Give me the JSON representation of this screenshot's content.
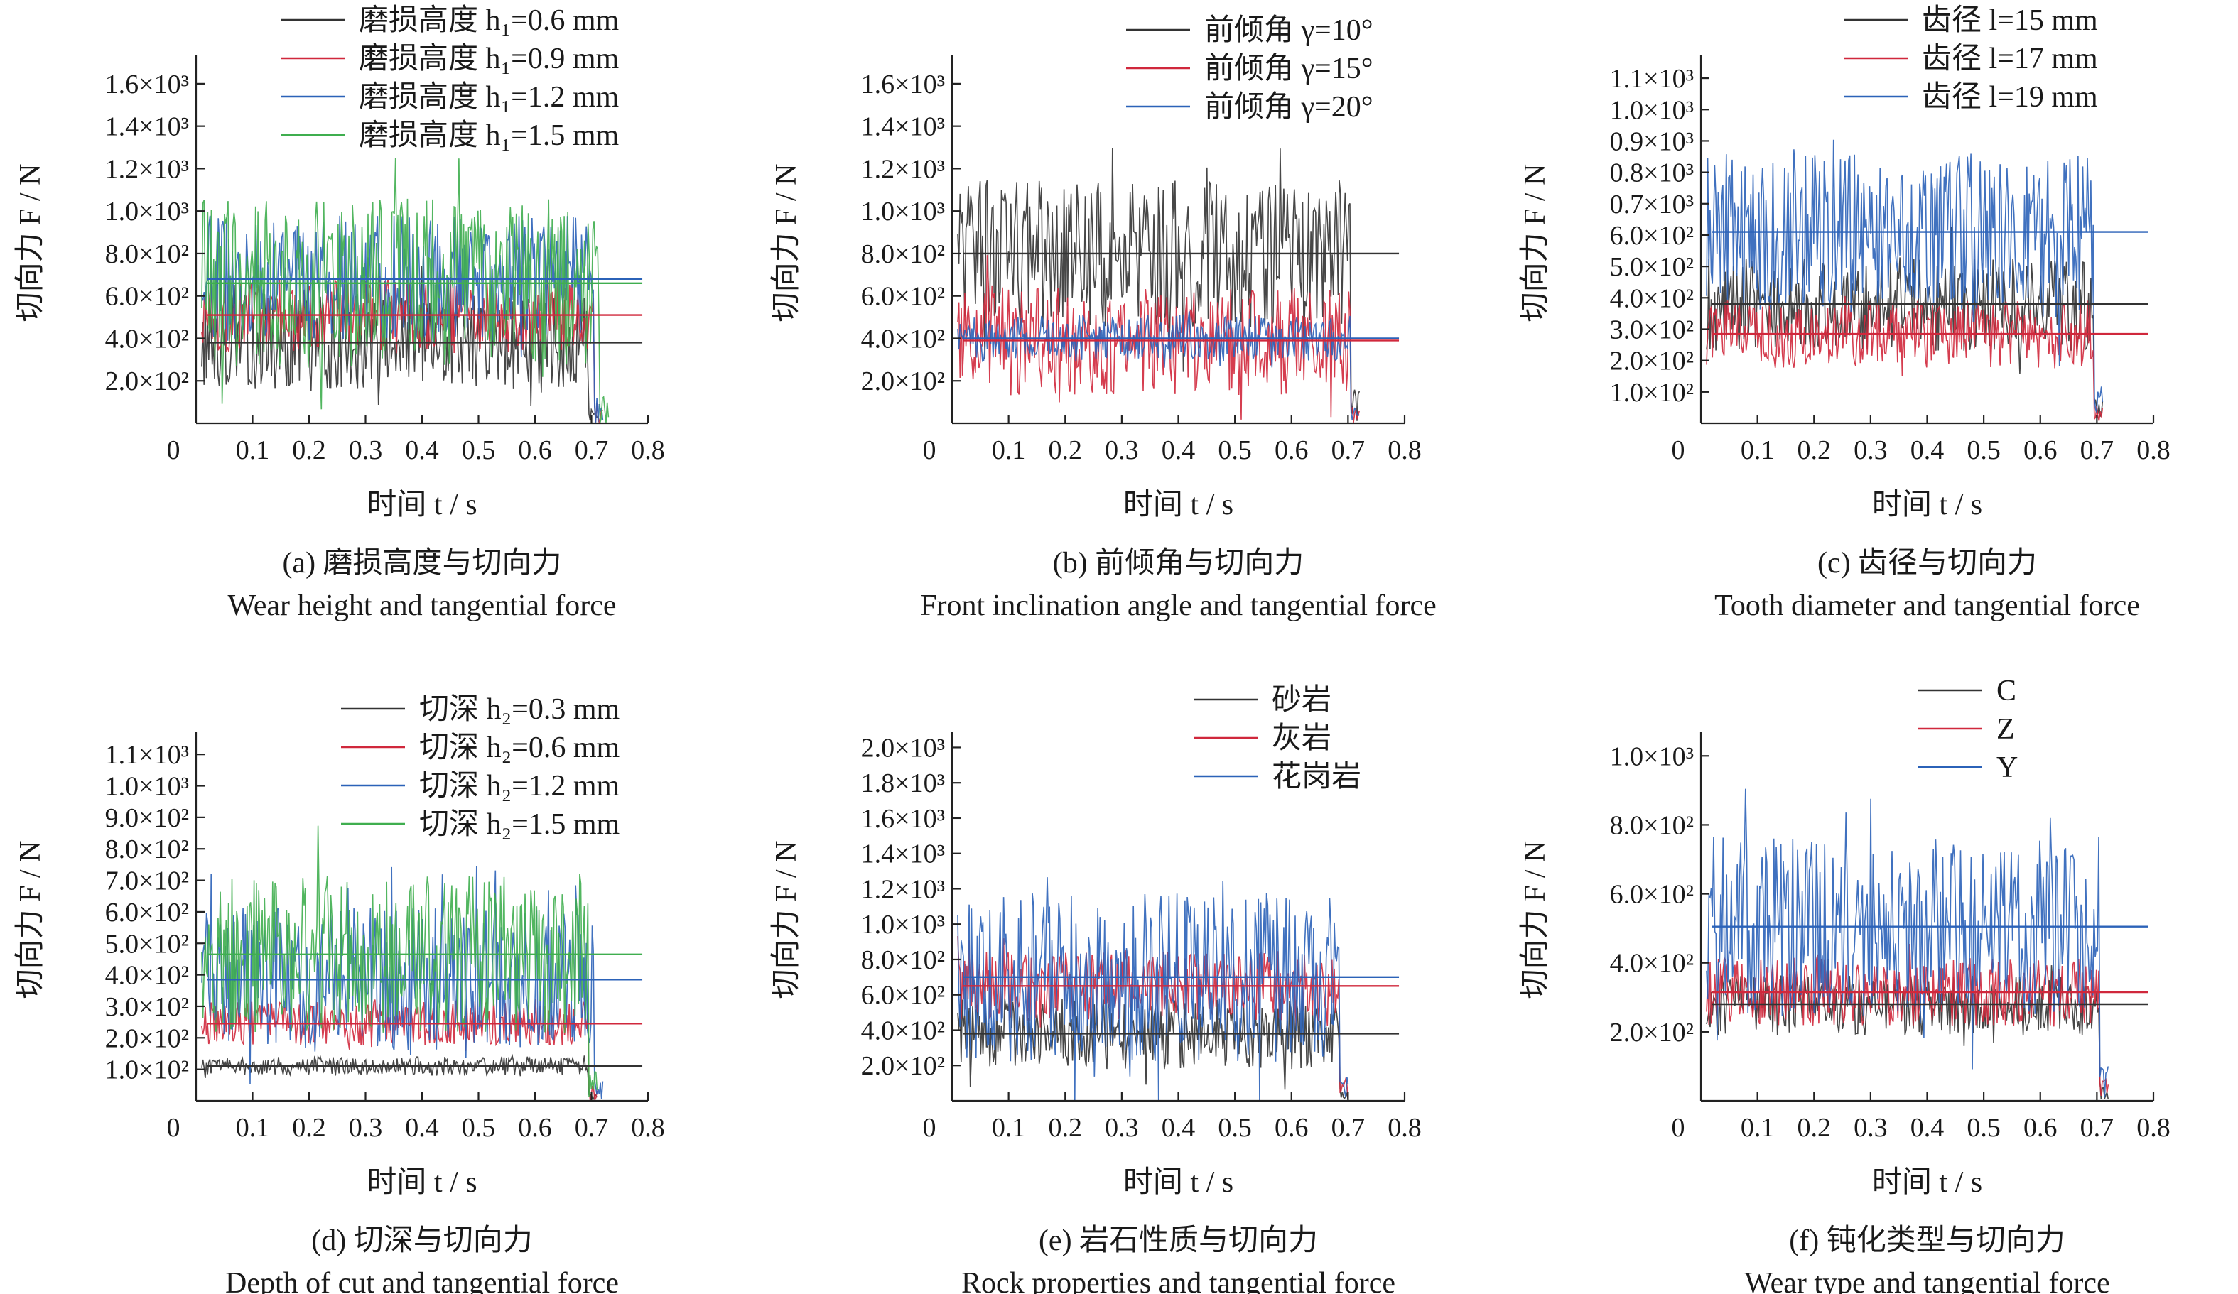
{
  "charts": [
    {
      "id": "a",
      "caption_cn": "(a) 磨损高度与切向力",
      "caption_en": "Wear height and tangential force",
      "xlabel": "时间 t / s",
      "ylabel": "切向力 F / N",
      "xlim": [
        0,
        0.8
      ],
      "xticks": [
        "0",
        "0.1",
        "0.2",
        "0.3",
        "0.4",
        "0.5",
        "0.6",
        "0.7",
        "0.8"
      ],
      "ylim": [
        0,
        1700
      ],
      "yticks": [
        {
          "v": 200,
          "l": "2.0×10²"
        },
        {
          "v": 400,
          "l": "4.0×10²"
        },
        {
          "v": 600,
          "l": "6.0×10²"
        },
        {
          "v": 800,
          "l": "8.0×10²"
        },
        {
          "v": 1000,
          "l": "1.0×10³"
        },
        {
          "v": 1200,
          "l": "1.2×10³"
        },
        {
          "v": 1400,
          "l": "1.4×10³"
        },
        {
          "v": 1600,
          "l": "1.6×10³"
        }
      ],
      "series": [
        {
          "name": "磨损高度 h₁=0.6 mm",
          "color": "#333333",
          "mean": 380,
          "amp": 220,
          "end": 0.71
        },
        {
          "name": "磨损高度 h₁=0.9 mm",
          "color": "#d0283c",
          "mean": 510,
          "amp": 180,
          "end": 0.72
        },
        {
          "name": "磨损高度 h₁=1.2 mm",
          "color": "#2b62b8",
          "mean": 680,
          "amp": 300,
          "end": 0.72
        },
        {
          "name": "磨损高度 h₁=1.5 mm",
          "color": "#3fae4f",
          "mean": 660,
          "amp": 400,
          "end": 0.73
        }
      ]
    },
    {
      "id": "b",
      "caption_cn": "(b) 前倾角与切向力",
      "caption_en": "Front inclination angle and tangential force",
      "xlabel": "时间 t / s",
      "ylabel": "切向力 F / N",
      "xlim": [
        0,
        0.8
      ],
      "xticks": [
        "0",
        "0.1",
        "0.2",
        "0.3",
        "0.4",
        "0.5",
        "0.6",
        "0.7",
        "0.8"
      ],
      "ylim": [
        0,
        1700
      ],
      "yticks": [
        {
          "v": 200,
          "l": "2.0×10²"
        },
        {
          "v": 400,
          "l": "4.0×10²"
        },
        {
          "v": 600,
          "l": "6.0×10²"
        },
        {
          "v": 800,
          "l": "8.0×10²"
        },
        {
          "v": 1000,
          "l": "1.0×10³"
        },
        {
          "v": 1200,
          "l": "1.2×10³"
        },
        {
          "v": 1400,
          "l": "1.4×10³"
        },
        {
          "v": 1600,
          "l": "1.6×10³"
        }
      ],
      "series": [
        {
          "name": "前倾角 γ=10°",
          "color": "#333333",
          "mean": 800,
          "amp": 350,
          "end": 0.72
        },
        {
          "name": "前倾角 γ=15°",
          "color": "#d0283c",
          "mean": 390,
          "amp": 260,
          "end": 0.72
        },
        {
          "name": "前倾角 γ=20°",
          "color": "#2b62b8",
          "mean": 400,
          "amp": 110,
          "end": 0.72
        }
      ]
    },
    {
      "id": "c",
      "caption_cn": "(c) 齿径与切向力",
      "caption_en": "Tooth diameter and tangential force",
      "xlabel": "时间 t / s",
      "ylabel": "切向力 F / N",
      "xlim": [
        0,
        0.8
      ],
      "xticks": [
        "0",
        "0.1",
        "0.2",
        "0.3",
        "0.4",
        "0.5",
        "0.6",
        "0.7",
        "0.8"
      ],
      "ylim": [
        0,
        1150
      ],
      "yticks": [
        {
          "v": 100,
          "l": "1.0×10²"
        },
        {
          "v": 200,
          "l": "2.0×10²"
        },
        {
          "v": 300,
          "l": "3.0×10²"
        },
        {
          "v": 400,
          "l": "4.0×10²"
        },
        {
          "v": 500,
          "l": "5.0×10²"
        },
        {
          "v": 600,
          "l": "6.0×10²"
        },
        {
          "v": 700,
          "l": "0.7×10³"
        },
        {
          "v": 800,
          "l": "0.8×10³"
        },
        {
          "v": 900,
          "l": "0.9×10³"
        },
        {
          "v": 1000,
          "l": "1.0×10³"
        },
        {
          "v": 1100,
          "l": "1.1×10³"
        }
      ],
      "series": [
        {
          "name": "齿径 l=15 mm",
          "color": "#333333",
          "mean": 380,
          "amp": 150,
          "end": 0.71
        },
        {
          "name": "齿径 l=17 mm",
          "color": "#d0283c",
          "mean": 285,
          "amp": 110,
          "end": 0.71
        },
        {
          "name": "齿径 l=19 mm",
          "color": "#2b62b8",
          "mean": 610,
          "amp": 250,
          "end": 0.71
        }
      ]
    },
    {
      "id": "d",
      "caption_cn": "(d) 切深与切向力",
      "caption_en": "Depth of cut and tangential force",
      "xlabel": "时间 t / s",
      "ylabel": "切向力 F / N",
      "xlim": [
        0,
        0.8
      ],
      "xticks": [
        "0",
        "0.1",
        "0.2",
        "0.3",
        "0.4",
        "0.5",
        "0.6",
        "0.7",
        "0.8"
      ],
      "ylim": [
        0,
        1150
      ],
      "yticks": [
        {
          "v": 100,
          "l": "1.0×10²"
        },
        {
          "v": 200,
          "l": "2.0×10²"
        },
        {
          "v": 300,
          "l": "3.0×10²"
        },
        {
          "v": 400,
          "l": "4.0×10²"
        },
        {
          "v": 500,
          "l": "5.0×10²"
        },
        {
          "v": 600,
          "l": "6.0×10²"
        },
        {
          "v": 700,
          "l": "7.0×10²"
        },
        {
          "v": 800,
          "l": "8.0×10²"
        },
        {
          "v": 900,
          "l": "9.0×10²"
        },
        {
          "v": 1000,
          "l": "1.0×10³"
        },
        {
          "v": 1100,
          "l": "1.1×10³"
        }
      ],
      "series": [
        {
          "name": "切深 h₂=0.3 mm",
          "color": "#333333",
          "mean": 110,
          "amp": 30,
          "end": 0.71
        },
        {
          "name": "切深 h₂=0.6 mm",
          "color": "#d0283c",
          "mean": 245,
          "amp": 70,
          "end": 0.71
        },
        {
          "name": "切深 h₂=1.2 mm",
          "color": "#2b62b8",
          "mean": 385,
          "amp": 230,
          "end": 0.72
        },
        {
          "name": "切深 h₂=1.5 mm",
          "color": "#3fae4f",
          "mean": 465,
          "amp": 250,
          "end": 0.71
        }
      ]
    },
    {
      "id": "e",
      "caption_cn": "(e) 岩石性质与切向力",
      "caption_en": "Rock properties and tangential force",
      "xlabel": "时间 t / s",
      "ylabel": "切向力 F / N",
      "xlim": [
        0,
        0.8
      ],
      "xticks": [
        "0",
        "0.1",
        "0.2",
        "0.3",
        "0.4",
        "0.5",
        "0.6",
        "0.7",
        "0.8"
      ],
      "ylim": [
        0,
        2050
      ],
      "yticks": [
        {
          "v": 200,
          "l": "2.0×10²"
        },
        {
          "v": 400,
          "l": "4.0×10²"
        },
        {
          "v": 600,
          "l": "6.0×10²"
        },
        {
          "v": 800,
          "l": "8.0×10²"
        },
        {
          "v": 1000,
          "l": "1.0×10³"
        },
        {
          "v": 1200,
          "l": "1.2×10³"
        },
        {
          "v": 1400,
          "l": "1.4×10³"
        },
        {
          "v": 1600,
          "l": "1.6×10³"
        },
        {
          "v": 1800,
          "l": "1.8×10³"
        },
        {
          "v": 2000,
          "l": "2.0×10³"
        }
      ],
      "series": [
        {
          "name": "砂岩",
          "color": "#333333",
          "mean": 380,
          "amp": 200,
          "end": 0.7
        },
        {
          "name": "灰岩",
          "color": "#d0283c",
          "mean": 650,
          "amp": 200,
          "end": 0.7
        },
        {
          "name": "花岗岩",
          "color": "#2b62b8",
          "mean": 700,
          "amp": 480,
          "end": 0.7
        }
      ]
    },
    {
      "id": "f",
      "caption_cn": "(f) 钝化类型与切向力",
      "caption_en": "Wear type and tangential force",
      "xlabel": "时间 t / s",
      "ylabel": "切向力 F / N",
      "xlim": [
        0,
        0.8
      ],
      "xticks": [
        "0",
        "0.1",
        "0.2",
        "0.3",
        "0.4",
        "0.5",
        "0.6",
        "0.7",
        "0.8"
      ],
      "ylim": [
        0,
        1050
      ],
      "yticks": [
        {
          "v": 200,
          "l": "2.0×10²"
        },
        {
          "v": 400,
          "l": "4.0×10²"
        },
        {
          "v": 600,
          "l": "6.0×10²"
        },
        {
          "v": 800,
          "l": "8.0×10²"
        },
        {
          "v": 1000,
          "l": "1.0×10³"
        }
      ],
      "series": [
        {
          "name": "C",
          "color": "#333333",
          "mean": 280,
          "amp": 90,
          "end": 0.72
        },
        {
          "name": "Z",
          "color": "#d0283c",
          "mean": 315,
          "amp": 100,
          "end": 0.72
        },
        {
          "name": "Y",
          "color": "#2b62b8",
          "mean": 505,
          "amp": 260,
          "end": 0.72
        }
      ]
    }
  ]
}
